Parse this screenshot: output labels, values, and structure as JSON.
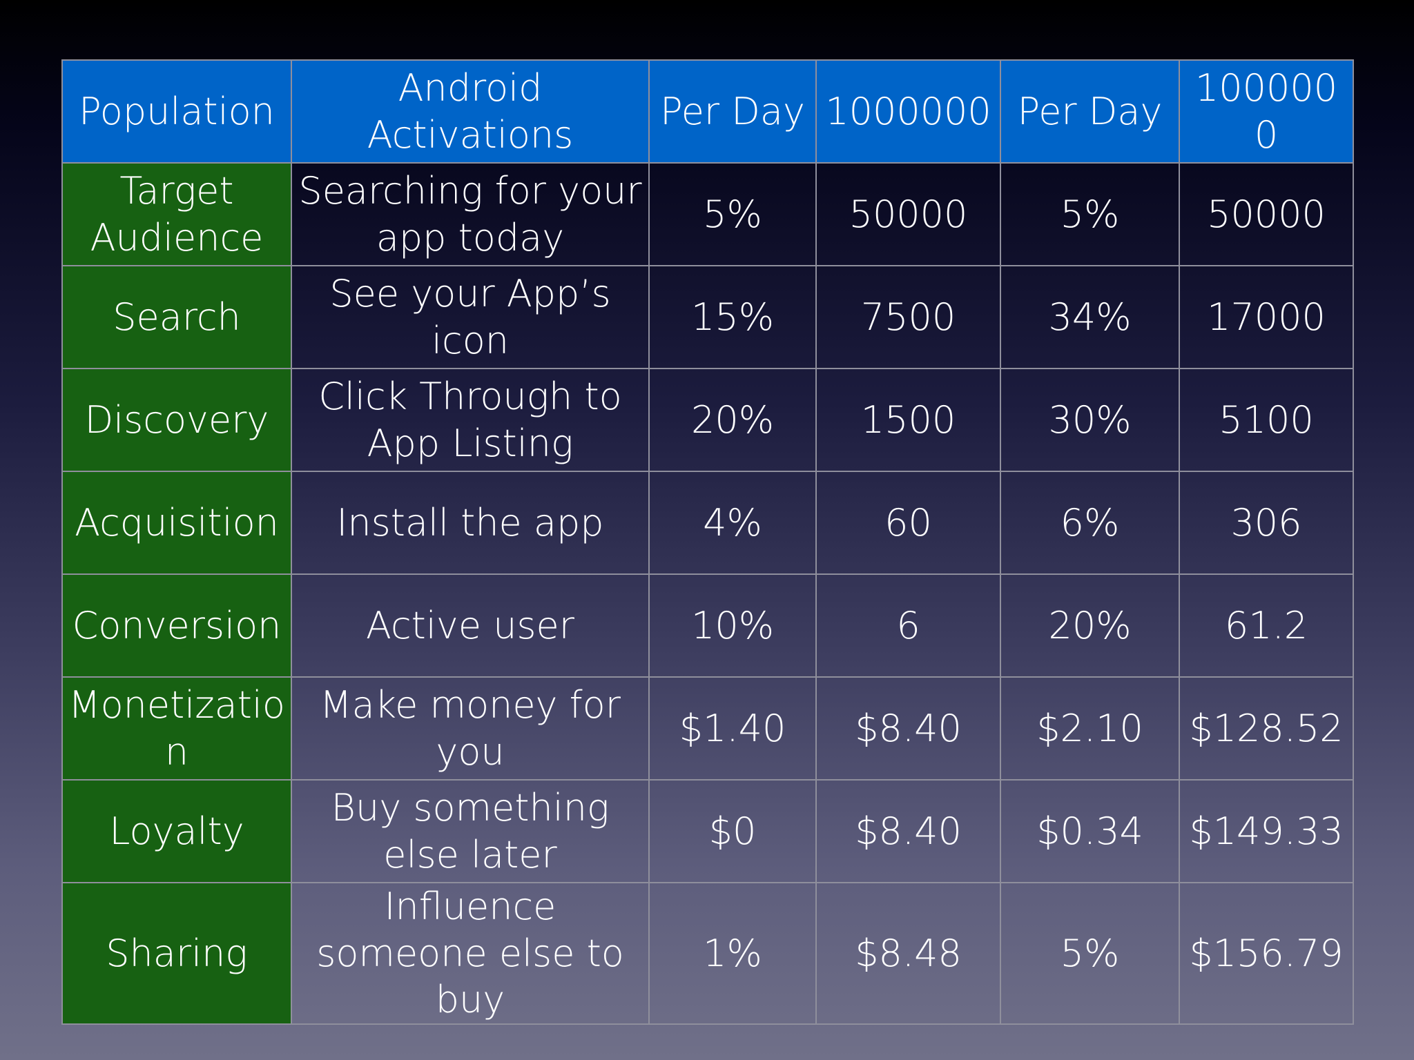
{
  "table": {
    "header": [
      "Population",
      "Android Activations",
      "Per Day",
      "1000000",
      "Per Day",
      "1000000"
    ],
    "rows": [
      {
        "stage": "Target Audience",
        "description": "Searching for your app today",
        "rate_1": "5%",
        "value_1": "50000",
        "rate_2": "5%",
        "value_2": "50000"
      },
      {
        "stage": "Search",
        "description": "See your App’s icon",
        "rate_1": "15%",
        "value_1": "7500",
        "rate_2": "34%",
        "value_2": "17000"
      },
      {
        "stage": "Discovery",
        "description": "Click Through to App Listing",
        "rate_1": "20%",
        "value_1": "1500",
        "rate_2": "30%",
        "value_2": "5100"
      },
      {
        "stage": "Acquisition",
        "description": "Install the app",
        "rate_1": "4%",
        "value_1": "60",
        "rate_2": "6%",
        "value_2": "306"
      },
      {
        "stage": "Conversion",
        "description": "Active user",
        "rate_1": "10%",
        "value_1": "6",
        "rate_2": "20%",
        "value_2": "61.2"
      },
      {
        "stage": "Monetizatio n",
        "description": "Make money for you",
        "rate_1": "$1.40",
        "value_1": "$8.40",
        "rate_2": "$2.10",
        "value_2": "$128.52"
      },
      {
        "stage": "Loyalty",
        "description": "Buy something else later",
        "rate_1": "$0",
        "value_1": "$8.40",
        "rate_2": "$0.34",
        "value_2": "$149.33"
      },
      {
        "stage": "Sharing",
        "description": "Influence someone else to buy",
        "rate_1": "1%",
        "value_1": "$8.48",
        "rate_2": "5%",
        "value_2": "$156.79"
      }
    ]
  },
  "colors": {
    "header_blue": "#0064c8",
    "stage_green": "#176112",
    "border": "#8f8f9c",
    "text": "#ffffff"
  }
}
